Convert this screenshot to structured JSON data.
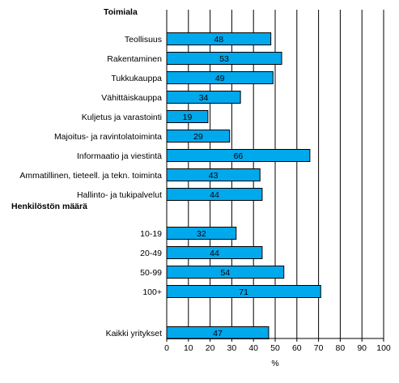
{
  "chart_data": {
    "type": "bar",
    "orientation": "horizontal",
    "xlabel": "%",
    "xlim": [
      0,
      100
    ],
    "xticks": [
      "0",
      "10",
      "20",
      "30",
      "40",
      "50",
      "60",
      "70",
      "80",
      "90",
      "100"
    ],
    "grid": true,
    "bar_color": "#00a8ec",
    "groups": [
      {
        "label": "Toimiala",
        "items": [
          {
            "label": "Teollisuus",
            "value": 48
          },
          {
            "label": "Rakentaminen",
            "value": 53
          },
          {
            "label": "Tukkukauppa",
            "value": 49
          },
          {
            "label": "Vähittäiskauppa",
            "value": 34
          },
          {
            "label": "Kuljetus ja varastointi",
            "value": 19
          },
          {
            "label": "Majoitus- ja ravintolatoiminta",
            "value": 29
          },
          {
            "label": "Informaatio ja viestintä",
            "value": 66
          },
          {
            "label": "Ammatillinen, tieteell. ja tekn. toiminta",
            "value": 43
          },
          {
            "label": "Hallinto- ja tukipalvelut",
            "value": 44
          }
        ]
      },
      {
        "label": "Henkilöstön määrä",
        "items": [
          {
            "label": "10-19",
            "value": 32
          },
          {
            "label": "20-49",
            "value": 44
          },
          {
            "label": "50-99",
            "value": 54
          },
          {
            "label": "100+",
            "value": 71
          }
        ]
      },
      {
        "label": "",
        "items": [
          {
            "label": "Kaikki yritykset",
            "value": 47
          }
        ]
      }
    ]
  }
}
